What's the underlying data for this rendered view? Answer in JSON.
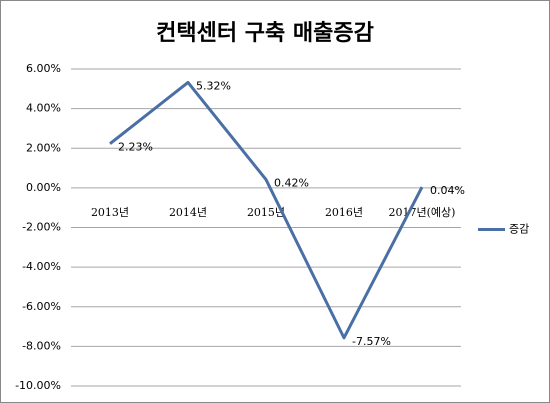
{
  "chart_data": {
    "type": "line",
    "title": "컨택센터 구축 매출증감",
    "categories": [
      "2013년",
      "2014년",
      "2015년",
      "2016년",
      "2017년(예상)"
    ],
    "series": [
      {
        "name": "증감",
        "color": "#4a6fa5",
        "values": [
          2.23,
          5.32,
          0.42,
          -7.57,
          0.04
        ],
        "value_labels": [
          "2.23%",
          "5.32%",
          "0.42%",
          "-7.57%",
          "0.04%"
        ]
      }
    ],
    "ylim": [
      -10,
      6
    ],
    "yticks": [
      {
        "value": -10,
        "label": "-10.00%"
      },
      {
        "value": -8,
        "label": "-8.00%"
      },
      {
        "value": -6,
        "label": "-6.00%"
      },
      {
        "value": -4,
        "label": "-4.00%"
      },
      {
        "value": -2,
        "label": "-2.00%"
      },
      {
        "value": 0,
        "label": "0.00%"
      },
      {
        "value": 2,
        "label": "2.00%"
      },
      {
        "value": 4,
        "label": "4.00%"
      },
      {
        "value": 6,
        "label": "6.00%"
      }
    ],
    "grid": true,
    "legend": "right"
  }
}
